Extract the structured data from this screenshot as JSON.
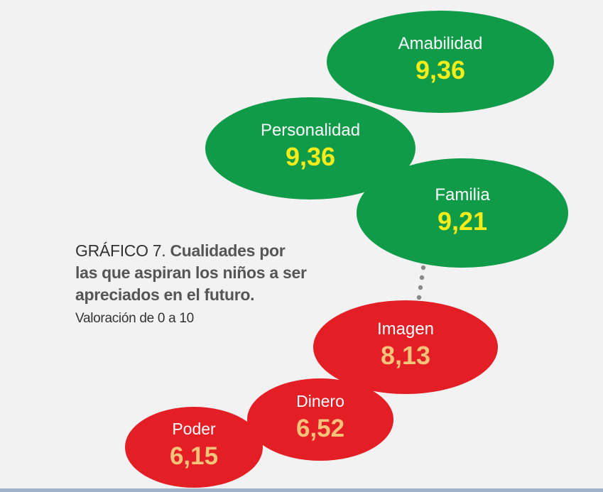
{
  "chart_data": {
    "type": "bubble",
    "title_prefix": "GRÁFICO 7.",
    "title": "Cualidades por las que aspiran los niños a ser apreciados en el futuro.",
    "subtitle": "Valoración de 0 a 10",
    "scale": [
      0,
      10
    ],
    "items": [
      {
        "label": "Amabilidad",
        "value_text": "9,36",
        "value": 9.36,
        "group": "high"
      },
      {
        "label": "Personalidad",
        "value_text": "9,36",
        "value": 9.36,
        "group": "high"
      },
      {
        "label": "Familia",
        "value_text": "9,21",
        "value": 9.21,
        "group": "high"
      },
      {
        "label": "Imagen",
        "value_text": "8,13",
        "value": 8.13,
        "group": "low"
      },
      {
        "label": "Dinero",
        "value_text": "6,52",
        "value": 6.52,
        "group": "low"
      },
      {
        "label": "Poder",
        "value_text": "6,15",
        "value": 6.15,
        "group": "low"
      }
    ],
    "colors": {
      "high_fill": "#0f9b48",
      "high_value": "#f5ec1a",
      "low_fill": "#e31e24",
      "low_value": "#f7c27a",
      "label": "#ffffff",
      "connector": "#888888"
    }
  }
}
